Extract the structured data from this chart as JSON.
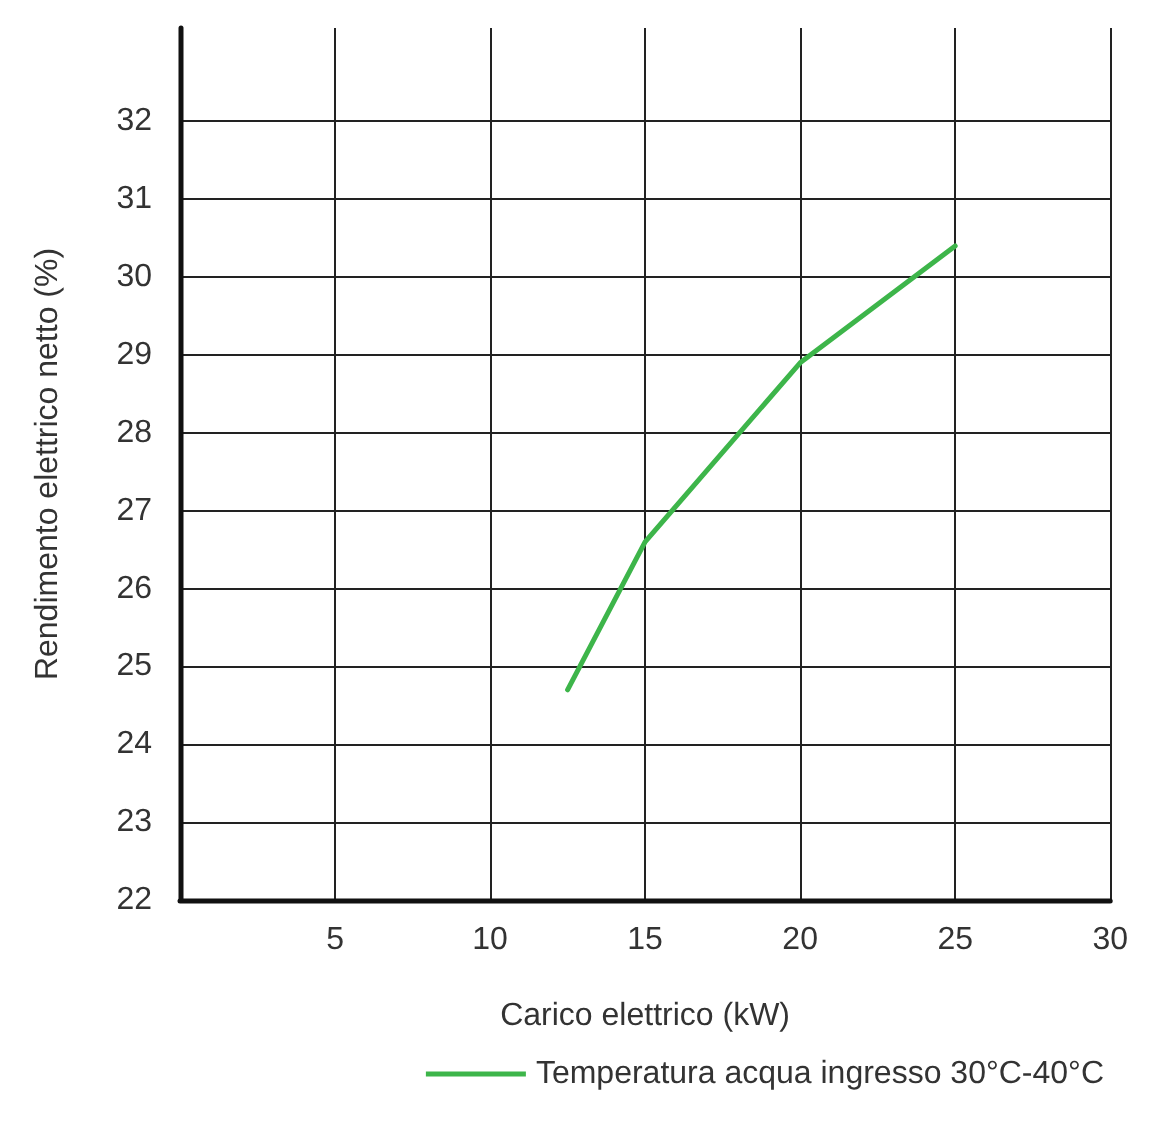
{
  "chart_data": {
    "type": "line",
    "xlabel": "Carico elettrico (kW)",
    "ylabel": "Rendimento elettrico netto (%)",
    "xlim": [
      0,
      30
    ],
    "xticks": [
      {
        "value": 0,
        "label": null
      },
      5,
      10,
      15,
      20,
      25,
      30
    ],
    "ylim": [
      22,
      33.2
    ],
    "yticks": [
      22,
      23,
      24,
      25,
      26,
      27,
      28,
      29,
      30,
      31,
      32
    ],
    "grid": true,
    "legend": "bottom",
    "marker": "none",
    "line_style": "solid",
    "series": [
      {
        "name": "Temperatura acqua ingresso 30°C-40°C",
        "color": "#3db54a",
        "x": [
          12.5,
          15,
          20,
          25
        ],
        "values": [
          24.7,
          26.6,
          28.9,
          30.4
        ]
      }
    ]
  }
}
